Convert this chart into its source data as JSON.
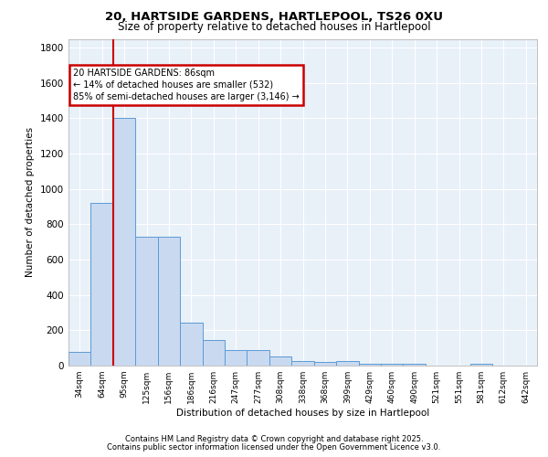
{
  "title_line1": "20, HARTSIDE GARDENS, HARTLEPOOL, TS26 0XU",
  "title_line2": "Size of property relative to detached houses in Hartlepool",
  "xlabel": "Distribution of detached houses by size in Hartlepool",
  "ylabel": "Number of detached properties",
  "categories": [
    "34sqm",
    "64sqm",
    "95sqm",
    "125sqm",
    "156sqm",
    "186sqm",
    "216sqm",
    "247sqm",
    "277sqm",
    "308sqm",
    "338sqm",
    "368sqm",
    "399sqm",
    "429sqm",
    "460sqm",
    "490sqm",
    "521sqm",
    "551sqm",
    "581sqm",
    "612sqm",
    "642sqm"
  ],
  "values": [
    80,
    920,
    1400,
    730,
    730,
    245,
    145,
    90,
    90,
    50,
    25,
    20,
    25,
    10,
    10,
    10,
    0,
    0,
    10,
    0,
    0
  ],
  "bar_color": "#c9d9f0",
  "bar_edge_color": "#5b9bd5",
  "annotation_text": "20 HARTSIDE GARDENS: 86sqm\n← 14% of detached houses are smaller (532)\n85% of semi-detached houses are larger (3,146) →",
  "annotation_box_color": "#ffffff",
  "annotation_box_edge_color": "#cc0000",
  "vline_color": "#cc0000",
  "bg_color": "#e8f0f8",
  "grid_color": "#ffffff",
  "footer_line1": "Contains HM Land Registry data © Crown copyright and database right 2025.",
  "footer_line2": "Contains public sector information licensed under the Open Government Licence v3.0.",
  "ylim": [
    0,
    1850
  ],
  "yticks": [
    0,
    200,
    400,
    600,
    800,
    1000,
    1200,
    1400,
    1600,
    1800
  ],
  "vline_x": 1.5
}
